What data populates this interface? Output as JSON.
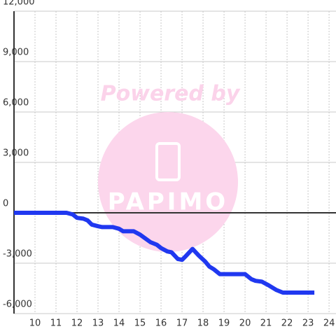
{
  "chart_data": {
    "type": "line",
    "watermark": {
      "top": "Powered by",
      "bottom": "PAPIMO"
    },
    "xlim": [
      9,
      24.33
    ],
    "xticks": [
      10,
      11,
      12,
      13,
      14,
      15,
      16,
      17,
      18,
      19,
      20,
      21,
      22,
      23,
      24
    ],
    "ylim": [
      -6000,
      12000
    ],
    "yticks": [
      {
        "value": -6000,
        "label": "-6,000"
      },
      {
        "value": -3000,
        "label": "-3,000"
      },
      0,
      {
        "value": 3000,
        "label": "3,000"
      },
      {
        "value": 6000,
        "label": "6,000"
      },
      {
        "value": 9000,
        "label": "9,000"
      },
      {
        "value": 12000,
        "label": "12,000"
      }
    ],
    "grid": true,
    "x": [
      9.0,
      11.5,
      11.8,
      12.0,
      12.3,
      12.5,
      12.7,
      13.0,
      13.2,
      13.7,
      14.0,
      14.2,
      14.7,
      15.0,
      15.5,
      15.8,
      16.0,
      16.3,
      16.5,
      16.8,
      17.0,
      17.2,
      17.5,
      17.8,
      18.1,
      18.3,
      18.5,
      18.8,
      19.7,
      20.0,
      20.3,
      20.5,
      20.8,
      21.1,
      21.5,
      21.8,
      22.0,
      23.3
    ],
    "series": [
      {
        "color": "#2038f0",
        "values": [
          0,
          0,
          -100,
          -300,
          -350,
          -450,
          -700,
          -800,
          -850,
          -850,
          -950,
          -1100,
          -1100,
          -1300,
          -1750,
          -1900,
          -2100,
          -2300,
          -2350,
          -2750,
          -2800,
          -2550,
          -2150,
          -2550,
          -2900,
          -3200,
          -3350,
          -3650,
          -3650,
          -3650,
          -3950,
          -4050,
          -4100,
          -4300,
          -4600,
          -4750,
          -4750,
          -4750
        ]
      }
    ]
  }
}
